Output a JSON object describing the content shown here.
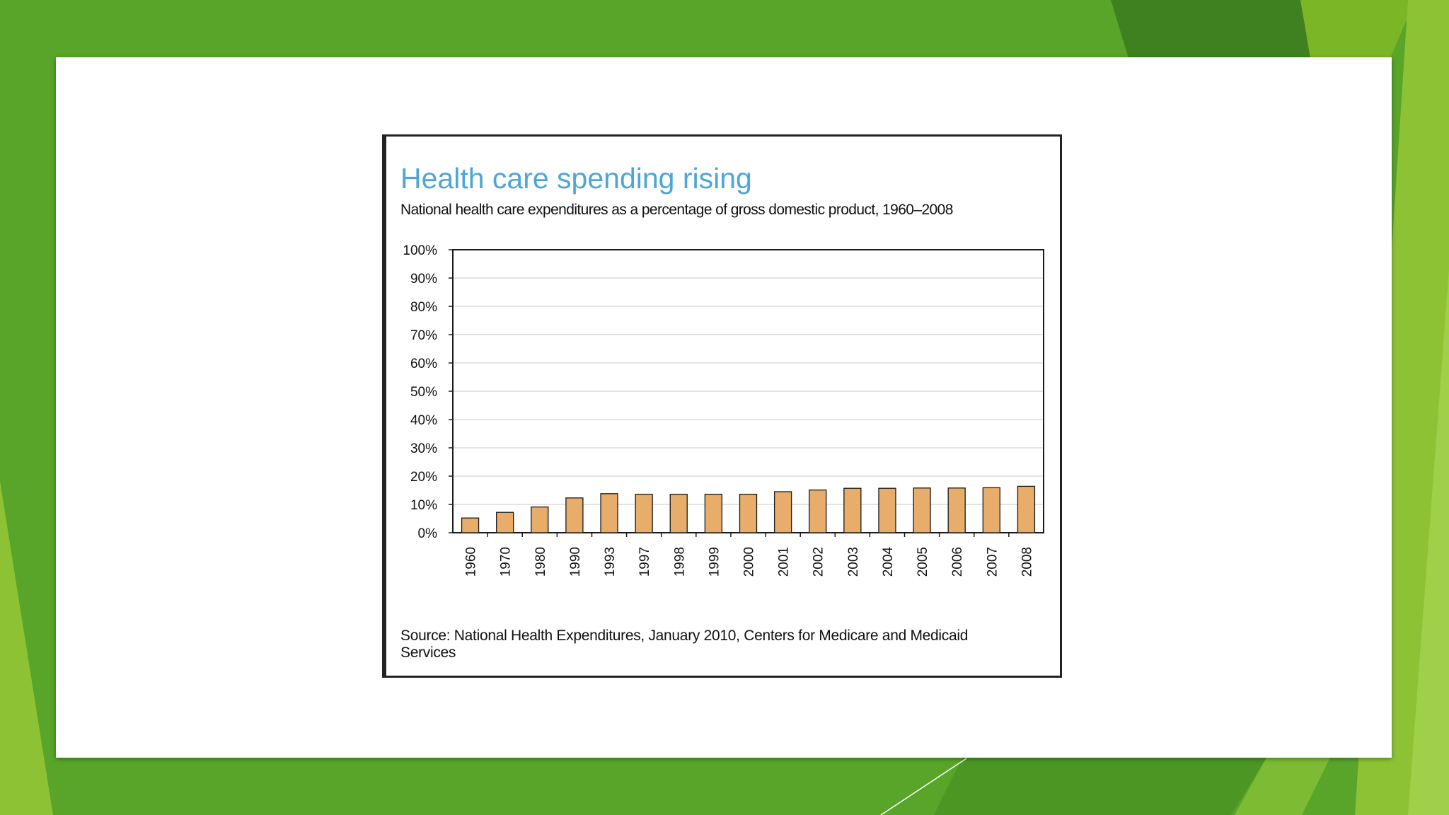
{
  "chart_data": {
    "type": "bar",
    "title": "Health care spending rising",
    "subtitle": "National health care expenditures as a percentage of gross domestic product, 1960–2008",
    "source": "Source: National Health Expenditures, January 2010, Centers for Medicare and Medicaid Services",
    "categories": [
      "1960",
      "1970",
      "1980",
      "1990",
      "1993",
      "1997",
      "1998",
      "1999",
      "2000",
      "2001",
      "2002",
      "2003",
      "2004",
      "2005",
      "2006",
      "2007",
      "2008"
    ],
    "values": [
      5.2,
      7.2,
      9.1,
      12.3,
      13.8,
      13.6,
      13.6,
      13.6,
      13.6,
      14.5,
      15.1,
      15.7,
      15.7,
      15.8,
      15.8,
      15.9,
      16.4
    ],
    "ylim": [
      0,
      100
    ],
    "yticks": [
      "0%",
      "10%",
      "20%",
      "30%",
      "40%",
      "50%",
      "60%",
      "70%",
      "80%",
      "90%",
      "100%"
    ],
    "xlabel": "",
    "ylabel": "",
    "grid": true,
    "bar_color": "#e8ad6b"
  },
  "theme": {
    "background": "#58a529",
    "title_color": "#4ea6d8"
  }
}
